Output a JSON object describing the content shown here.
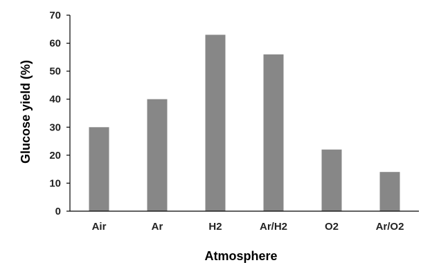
{
  "chart_data": {
    "type": "bar",
    "title": "",
    "xlabel": "Atmosphere",
    "ylabel": "Glucose yield (%)",
    "categories": [
      "Air",
      "Ar",
      "H2",
      "Ar/H2",
      "O2",
      "Ar/O2"
    ],
    "values": [
      30,
      40,
      63,
      56,
      22,
      14
    ],
    "ylim": [
      0,
      70
    ],
    "yticks": [
      0,
      10,
      20,
      30,
      40,
      50,
      60,
      70
    ],
    "grid": false,
    "legend": "none",
    "bar_color": "#878787",
    "axis_color": "#000000"
  }
}
